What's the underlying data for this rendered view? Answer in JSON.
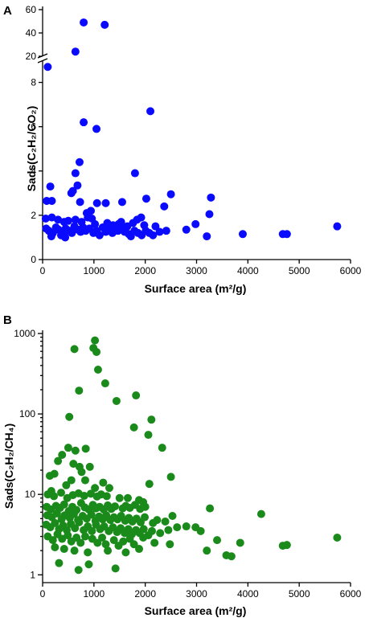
{
  "chart_data": [
    {
      "type": "scatter",
      "panel": "A",
      "xlabel": "Surface area (m²/g)",
      "ylabel": "Sads(C₂H₂/CO₂)",
      "xlim": [
        0,
        6000
      ],
      "ylim_lower": [
        0,
        9
      ],
      "ylim_upper": [
        20,
        60
      ],
      "axis_break": true,
      "x_ticks": [
        "0",
        "1000",
        "2000",
        "3000",
        "4000",
        "5000",
        "6000"
      ],
      "y_ticks_lower": [
        "0",
        "2",
        "4",
        "6",
        "8"
      ],
      "y_ticks_upper": [
        "20",
        "40",
        "60"
      ],
      "color": "#0a0aff",
      "points": [
        [
          800,
          49
        ],
        [
          1210,
          47
        ],
        [
          640,
          24
        ],
        [
          100,
          8.7
        ],
        [
          2100,
          6.7
        ],
        [
          800,
          6.2
        ],
        [
          1050,
          5.9
        ],
        [
          720,
          4.4
        ],
        [
          1800,
          3.9
        ],
        [
          640,
          3.9
        ],
        [
          150,
          3.3
        ],
        [
          680,
          3.35
        ],
        [
          560,
          3.0
        ],
        [
          590,
          3.1
        ],
        [
          2500,
          2.95
        ],
        [
          3280,
          2.8
        ],
        [
          2020,
          2.75
        ],
        [
          80,
          2.65
        ],
        [
          180,
          2.65
        ],
        [
          730,
          2.6
        ],
        [
          1060,
          2.55
        ],
        [
          1230,
          2.55
        ],
        [
          1550,
          2.6
        ],
        [
          940,
          2.2
        ],
        [
          860,
          2.1
        ],
        [
          2370,
          2.4
        ],
        [
          3250,
          2.05
        ],
        [
          60,
          1.85
        ],
        [
          180,
          1.9
        ],
        [
          300,
          1.8
        ],
        [
          420,
          1.7
        ],
        [
          500,
          1.75
        ],
        [
          640,
          1.8
        ],
        [
          760,
          1.7
        ],
        [
          880,
          1.9
        ],
        [
          960,
          1.85
        ],
        [
          1020,
          1.6
        ],
        [
          1260,
          1.65
        ],
        [
          1370,
          1.55
        ],
        [
          1480,
          1.6
        ],
        [
          1530,
          1.7
        ],
        [
          1650,
          1.5
        ],
        [
          1760,
          1.65
        ],
        [
          1840,
          1.8
        ],
        [
          1920,
          1.9
        ],
        [
          1980,
          1.55
        ],
        [
          2200,
          1.5
        ],
        [
          2980,
          1.6
        ],
        [
          70,
          1.4
        ],
        [
          120,
          1.3
        ],
        [
          200,
          1.2
        ],
        [
          260,
          1.45
        ],
        [
          310,
          1.35
        ],
        [
          360,
          1.1
        ],
        [
          400,
          1.25
        ],
        [
          450,
          1.4
        ],
        [
          520,
          1.3
        ],
        [
          570,
          1.2
        ],
        [
          620,
          1.5
        ],
        [
          690,
          1.35
        ],
        [
          740,
          1.25
        ],
        [
          790,
          1.45
        ],
        [
          840,
          1.3
        ],
        [
          910,
          1.4
        ],
        [
          990,
          1.2
        ],
        [
          1050,
          1.3
        ],
        [
          1110,
          1.1
        ],
        [
          1170,
          1.45
        ],
        [
          1230,
          1.25
        ],
        [
          1300,
          1.35
        ],
        [
          1360,
          1.2
        ],
        [
          1420,
          1.4
        ],
        [
          1470,
          1.3
        ],
        [
          1540,
          1.45
        ],
        [
          1600,
          1.25
        ],
        [
          1680,
          1.15
        ],
        [
          1720,
          1.05
        ],
        [
          1790,
          1.3
        ],
        [
          1860,
          1.2
        ],
        [
          1930,
          1.1
        ],
        [
          2010,
          1.3
        ],
        [
          2080,
          1.2
        ],
        [
          2150,
          1.1
        ],
        [
          2280,
          1.25
        ],
        [
          2410,
          1.3
        ],
        [
          2800,
          1.35
        ],
        [
          3200,
          1.05
        ],
        [
          3900,
          1.15
        ],
        [
          4680,
          1.15
        ],
        [
          4760,
          1.15
        ],
        [
          5740,
          1.5
        ],
        [
          170,
          1.05
        ],
        [
          440,
          1.0
        ]
      ]
    },
    {
      "type": "scatter",
      "panel": "B",
      "xlabel": "Surface area (m²/g)",
      "ylabel": "Sads(C₂H₂/CH₄)",
      "xlim": [
        0,
        6000
      ],
      "ylim": [
        0.8,
        1000
      ],
      "yscale": "log",
      "x_ticks": [
        "0",
        "1000",
        "2000",
        "3000",
        "4000",
        "5000",
        "6000"
      ],
      "y_ticks": [
        "1",
        "10",
        "100",
        "1000"
      ],
      "color": "#1a8a1a",
      "points": [
        [
          1020,
          820
        ],
        [
          990,
          660
        ],
        [
          1050,
          590
        ],
        [
          620,
          640
        ],
        [
          1080,
          355
        ],
        [
          1220,
          240
        ],
        [
          710,
          195
        ],
        [
          1440,
          145
        ],
        [
          1820,
          170
        ],
        [
          2120,
          85
        ],
        [
          520,
          92
        ],
        [
          1780,
          68
        ],
        [
          2060,
          55
        ],
        [
          2330,
          38
        ],
        [
          500,
          38
        ],
        [
          640,
          35
        ],
        [
          840,
          37
        ],
        [
          380,
          31
        ],
        [
          300,
          26
        ],
        [
          230,
          18
        ],
        [
          140,
          17
        ],
        [
          720,
          22
        ],
        [
          920,
          22
        ],
        [
          600,
          24
        ],
        [
          760,
          19
        ],
        [
          2080,
          13.5
        ],
        [
          2500,
          16.5
        ],
        [
          1020,
          12
        ],
        [
          1300,
          12
        ],
        [
          170,
          11
        ],
        [
          460,
          13
        ],
        [
          560,
          15
        ],
        [
          830,
          15
        ],
        [
          1180,
          14
        ],
        [
          100,
          10
        ],
        [
          220,
          9.5
        ],
        [
          360,
          10.5
        ],
        [
          480,
          9
        ],
        [
          590,
          9.8
        ],
        [
          700,
          10.3
        ],
        [
          810,
          9.6
        ],
        [
          940,
          10.2
        ],
        [
          1060,
          9.4
        ],
        [
          1140,
          10
        ],
        [
          1250,
          9.5
        ],
        [
          1500,
          9
        ],
        [
          1660,
          9
        ],
        [
          1880,
          8.5
        ],
        [
          1960,
          8
        ],
        [
          80,
          7
        ],
        [
          160,
          6.5
        ],
        [
          260,
          7.2
        ],
        [
          340,
          6.8
        ],
        [
          420,
          7.5
        ],
        [
          510,
          6.2
        ],
        [
          580,
          7
        ],
        [
          660,
          6.4
        ],
        [
          750,
          7.8
        ],
        [
          820,
          6.9
        ],
        [
          900,
          6.5
        ],
        [
          980,
          7.4
        ],
        [
          1040,
          6.7
        ],
        [
          1110,
          7
        ],
        [
          1190,
          6.5
        ],
        [
          1270,
          7.3
        ],
        [
          1340,
          6.6
        ],
        [
          1410,
          7.1
        ],
        [
          1560,
          6.7
        ],
        [
          1620,
          7.2
        ],
        [
          1700,
          6.8
        ],
        [
          1800,
          7.4
        ],
        [
          1900,
          6.6
        ],
        [
          2000,
          7
        ],
        [
          3260,
          6.7
        ],
        [
          4260,
          5.7
        ],
        [
          90,
          5.5
        ],
        [
          180,
          5.2
        ],
        [
          280,
          5.8
        ],
        [
          370,
          4.9
        ],
        [
          430,
          5.5
        ],
        [
          530,
          5.1
        ],
        [
          610,
          5.7
        ],
        [
          690,
          4.8
        ],
        [
          780,
          5.4
        ],
        [
          860,
          5
        ],
        [
          950,
          5.6
        ],
        [
          1030,
          4.7
        ],
        [
          1100,
          5.3
        ],
        [
          1170,
          4.9
        ],
        [
          1240,
          5.5
        ],
        [
          1320,
          4.8
        ],
        [
          1390,
          5.2
        ],
        [
          1460,
          4.9
        ],
        [
          1530,
          5.4
        ],
        [
          1610,
          4.7
        ],
        [
          1680,
          5.1
        ],
        [
          1750,
          4.6
        ],
        [
          1830,
          5
        ],
        [
          1910,
          4.5
        ],
        [
          1990,
          5.2
        ],
        [
          2150,
          4.4
        ],
        [
          2230,
          4.8
        ],
        [
          2390,
          4.6
        ],
        [
          2530,
          5.4
        ],
        [
          70,
          4.2
        ],
        [
          150,
          3.9
        ],
        [
          240,
          4.4
        ],
        [
          320,
          3.7
        ],
        [
          400,
          4.1
        ],
        [
          470,
          3.6
        ],
        [
          550,
          4.3
        ],
        [
          630,
          3.8
        ],
        [
          710,
          4.5
        ],
        [
          800,
          3.6
        ],
        [
          880,
          4
        ],
        [
          960,
          3.5
        ],
        [
          1040,
          4.2
        ],
        [
          1120,
          3.7
        ],
        [
          1200,
          4
        ],
        [
          1290,
          3.5
        ],
        [
          1370,
          3.9
        ],
        [
          1450,
          3.4
        ],
        [
          1520,
          3.8
        ],
        [
          1600,
          3.3
        ],
        [
          1670,
          3.7
        ],
        [
          1740,
          3.2
        ],
        [
          1820,
          3.6
        ],
        [
          1890,
          3.3
        ],
        [
          1970,
          3.7
        ],
        [
          2060,
          3.1
        ],
        [
          2130,
          3.5
        ],
        [
          2290,
          3.3
        ],
        [
          2450,
          3.6
        ],
        [
          2620,
          3.9
        ],
        [
          2800,
          4
        ],
        [
          2980,
          3.9
        ],
        [
          3080,
          3.5
        ],
        [
          100,
          3
        ],
        [
          200,
          2.7
        ],
        [
          290,
          3.2
        ],
        [
          380,
          2.8
        ],
        [
          490,
          3.1
        ],
        [
          560,
          2.6
        ],
        [
          660,
          2.9
        ],
        [
          740,
          2.5
        ],
        [
          830,
          3
        ],
        [
          970,
          2.8
        ],
        [
          1070,
          2.5
        ],
        [
          1160,
          2.9
        ],
        [
          1230,
          2.4
        ],
        [
          1390,
          2.7
        ],
        [
          1480,
          2.3
        ],
        [
          1570,
          2.6
        ],
        [
          1700,
          2.8
        ],
        [
          1780,
          2.4
        ],
        [
          1960,
          2.9
        ],
        [
          2180,
          2.5
        ],
        [
          2480,
          2.4
        ],
        [
          3400,
          2.7
        ],
        [
          3850,
          2.5
        ],
        [
          3200,
          2
        ],
        [
          3580,
          1.75
        ],
        [
          3680,
          1.7
        ],
        [
          4680,
          2.3
        ],
        [
          4760,
          2.35
        ],
        [
          5740,
          2.9
        ],
        [
          240,
          2.2
        ],
        [
          420,
          2.1
        ],
        [
          620,
          2
        ],
        [
          880,
          1.9
        ],
        [
          1270,
          2
        ],
        [
          1620,
          1.9
        ],
        [
          1880,
          2.1
        ],
        [
          320,
          1.4
        ],
        [
          700,
          1.15
        ],
        [
          900,
          1.35
        ],
        [
          1420,
          1.2
        ]
      ]
    }
  ]
}
